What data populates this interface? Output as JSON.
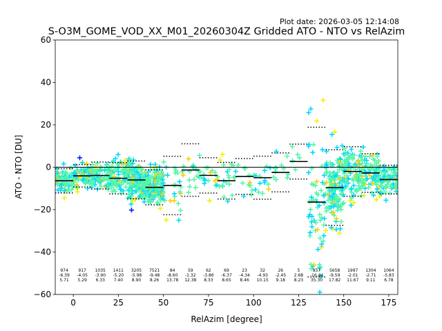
{
  "chart_data": {
    "type": "scatter",
    "title": "S-O3M_GOME_VOD_XX_M01_20260304Z Gridded ATO - NTO vs RelAzim",
    "plot_date_label": "Plot date: 2026-03-05 12:14:08",
    "xlabel": "RelAzim [degree]",
    "ylabel": "ATO - NTO [DU]",
    "xlim": [
      -10,
      180
    ],
    "ylim": [
      -60,
      60
    ],
    "xticks": [
      0,
      25,
      50,
      75,
      100,
      125,
      150,
      175
    ],
    "yticks": [
      -60,
      -40,
      -20,
      0,
      20,
      40,
      60
    ],
    "colors": {
      "scatter_main": "#55f5a8",
      "scatter_mid": "#00d8ff",
      "scatter_yellow": "#f5f000",
      "scatter_gold": "#ffcc00",
      "scatter_blue": "#0018ff",
      "mean_line": "#000000",
      "zero_line": "#000000"
    },
    "bins": [
      {
        "center": -5,
        "count": "974",
        "mean": "-6.39",
        "std": "5.71"
      },
      {
        "center": 5,
        "count": "917",
        "mean": "-4.05",
        "std": "5.29"
      },
      {
        "center": 15,
        "count": "1035",
        "mean": "-3.90",
        "std": "6.33"
      },
      {
        "center": 25,
        "count": "1411",
        "mean": "-5.20",
        "std": "7.40"
      },
      {
        "center": 35,
        "count": "3205",
        "mean": "-5.98",
        "std": "8.90"
      },
      {
        "center": 45,
        "count": "7521",
        "mean": "-9.48",
        "std": "8.26"
      },
      {
        "center": 55,
        "count": "84",
        "mean": "-8.60",
        "std": "13.78"
      },
      {
        "center": 65,
        "count": "59",
        "mean": "-1.32",
        "std": "12.38"
      },
      {
        "center": 75,
        "count": "62",
        "mean": "-3.86",
        "std": "8.33"
      },
      {
        "center": 85,
        "count": "69",
        "mean": "-6.37",
        "std": "8.65"
      },
      {
        "center": 95,
        "count": "23",
        "mean": "-4.34",
        "std": "8.46"
      },
      {
        "center": 105,
        "count": "32",
        "mean": "-4.93",
        "std": "10.15"
      },
      {
        "center": 115,
        "count": "26",
        "mean": "-2.45",
        "std": "9.18"
      },
      {
        "center": 125,
        "count": "5",
        "mean": "2.68",
        "std": "8.23"
      },
      {
        "center": 135,
        "count": "857",
        "mean": "-16.44",
        "std": "35.30"
      },
      {
        "center": 145,
        "count": "5658",
        "mean": "-9.59",
        "std": "17.82"
      },
      {
        "center": 155,
        "count": "1997",
        "mean": "-2.01",
        "std": "11.67"
      },
      {
        "center": 165,
        "count": "1304",
        "mean": "-2.71",
        "std": "9.11"
      },
      {
        "center": 175,
        "count": "1064",
        "mean": "-5.83",
        "std": "6.78"
      }
    ]
  }
}
